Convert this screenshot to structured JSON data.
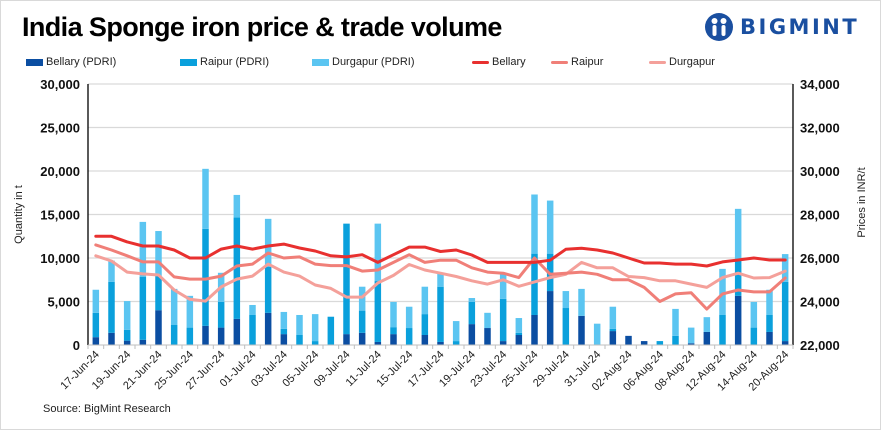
{
  "header": {
    "title": "India Sponge iron price & trade volume",
    "brand": "BIGMINT"
  },
  "footer": {
    "source": "Source: BigMint Research"
  },
  "colors": {
    "bellary_bar": "#0b4ea2",
    "raipur_bar": "#0aa0dc",
    "durgapur_bar": "#5bc5f1",
    "bellary_line": "#e8302f",
    "raipur_line": "#f07f78",
    "durgapur_line": "#f4a09a",
    "brand": "#1a4fa0",
    "grid": "#d9d9d9"
  },
  "chart_data": {
    "type": "bar",
    "combo": "stacked bar (left axis) + line (right axis)",
    "title": "India Sponge iron price & trade volume",
    "ylabel": "Quantity in t",
    "y2label": "Prices in INR/t",
    "ylim": [
      0,
      30000
    ],
    "y2lim": [
      22000,
      34000
    ],
    "yticks": [
      "0",
      "5,000",
      "10,000",
      "15,000",
      "20,000",
      "25,000",
      "30,000"
    ],
    "y2ticks": [
      "22,000",
      "24,000",
      "26,000",
      "28,000",
      "30,000",
      "32,000",
      "34,000"
    ],
    "grid": true,
    "legend_position": "top",
    "bar_count": 45,
    "x_tick_labels": [
      "17-Jun-24",
      "19-Jun-24",
      "21-Jun-24",
      "25-Jun-24",
      "27-Jun-24",
      "01-Jul-24",
      "03-Jul-24",
      "05-Jul-24",
      "09-Jul-24",
      "11-Jul-24",
      "15-Jul-24",
      "17-Jul-24",
      "19-Jul-24",
      "23-Jul-24",
      "25-Jul-24",
      "29-Jul-24",
      "31-Jul-24",
      "02-Aug-24",
      "06-Aug-24",
      "08-Aug-24",
      "12-Aug-24",
      "14-Aug-24",
      "20-Aug-24"
    ],
    "x_tick_every": 2,
    "bar_series": [
      {
        "name": "Bellary (PDRI)",
        "color_key": "bellary_bar",
        "values": [
          900,
          1400,
          500,
          600,
          4000,
          0,
          0,
          2200,
          2000,
          3000,
          0,
          3700,
          1250,
          0,
          0,
          0,
          1250,
          1400,
          350,
          1250,
          0,
          1150,
          350,
          0,
          2400,
          1950,
          450,
          1150,
          3450,
          6200,
          0,
          3350,
          0,
          1600,
          1050,
          450,
          0,
          0,
          200,
          1500,
          0,
          5650,
          0,
          1500,
          450
        ]
      },
      {
        "name": "Raipur (PDRI)",
        "color_key": "raipur_bar",
        "values": [
          2800,
          5850,
          1250,
          7250,
          3950,
          2300,
          2000,
          11150,
          2950,
          11650,
          3450,
          5300,
          600,
          1150,
          450,
          3250,
          12700,
          2550,
          7000,
          800,
          1950,
          2400,
          6350,
          450,
          2550,
          0,
          4850,
          250,
          7050,
          4300,
          4250,
          0,
          0,
          250,
          0,
          0,
          450,
          1050,
          0,
          0,
          3450,
          4150,
          2000,
          1950,
          6800
        ]
      },
      {
        "name": "Durgapur (PDRI)",
        "color_key": "durgapur_bar",
        "values": [
          2650,
          2450,
          3300,
          6300,
          5150,
          4150,
          3650,
          6900,
          3350,
          2600,
          1150,
          5500,
          1950,
          2300,
          3100,
          0,
          0,
          2750,
          6600,
          2900,
          2450,
          3150,
          1500,
          2300,
          450,
          1750,
          2900,
          1700,
          6800,
          6100,
          1950,
          3100,
          2450,
          2550,
          0,
          0,
          0,
          3100,
          1800,
          1700,
          5300,
          5850,
          2950,
          2900,
          3200
        ]
      }
    ],
    "line_series": [
      {
        "name": "Bellary",
        "color_key": "bellary_line",
        "values": [
          27000,
          27000,
          26740,
          26550,
          26550,
          26370,
          26000,
          26000,
          26410,
          26550,
          26410,
          26550,
          26640,
          26460,
          26320,
          26100,
          26050,
          26150,
          25800,
          26150,
          26500,
          26500,
          26300,
          26370,
          26140,
          25800,
          25800,
          25800,
          25800,
          25900,
          26400,
          26450,
          26370,
          26230,
          26000,
          25770,
          25770,
          25720,
          25720,
          25630,
          25820,
          25910,
          26000,
          25910,
          25910
        ]
      },
      {
        "name": "Raipur",
        "color_key": "raipur_line",
        "values": [
          26600,
          26370,
          26100,
          25820,
          25820,
          25130,
          25030,
          25030,
          25170,
          25630,
          25720,
          26230,
          26000,
          26050,
          25720,
          25650,
          25650,
          25400,
          25450,
          25800,
          26150,
          25800,
          25900,
          25900,
          25550,
          25350,
          25300,
          25100,
          26000,
          25250,
          25300,
          25350,
          25250,
          25000,
          25000,
          24650,
          24000,
          24350,
          24400,
          23650,
          24350,
          24530,
          24440,
          24440,
          25080
        ]
      },
      {
        "name": "Durgapur",
        "color_key": "durgapur_line",
        "values": [
          26100,
          25860,
          25350,
          25270,
          25220,
          24530,
          24100,
          24020,
          24670,
          25030,
          25170,
          25720,
          25350,
          25170,
          24760,
          24600,
          24200,
          24200,
          24850,
          25200,
          25700,
          25450,
          25300,
          25150,
          24950,
          24800,
          25000,
          24700,
          24900,
          25100,
          25250,
          25800,
          25550,
          25550,
          25150,
          25100,
          24950,
          24950,
          24800,
          24650,
          25100,
          25300,
          25080,
          25100,
          25400
        ]
      }
    ]
  }
}
